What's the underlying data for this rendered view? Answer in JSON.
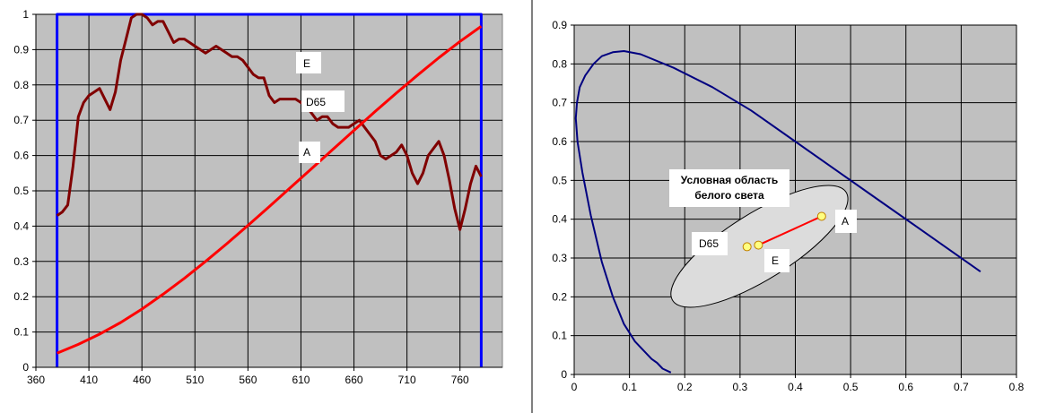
{
  "colors": {
    "plot_bg": "#c0c0c0",
    "grid": "#000000",
    "source_e": "#0000ff",
    "source_d65": "#800000",
    "source_a": "#ff0000",
    "locus": "#000080",
    "white_region_fill": "#dcdcdc",
    "point_fill": "#ffff80",
    "label_bg": "#ffffff"
  },
  "chart_data": [
    {
      "type": "line",
      "title": "",
      "xlabel": "",
      "ylabel": "",
      "xlim": [
        360,
        800
      ],
      "ylim": [
        0,
        1
      ],
      "x_ticks": [
        "360",
        "410",
        "460",
        "510",
        "560",
        "610",
        "660",
        "710",
        "760"
      ],
      "y_ticks": [
        "0",
        "0.1",
        "0.2",
        "0.3",
        "0.4",
        "0.5",
        "0.6",
        "0.7",
        "0.8",
        "0.9",
        "1"
      ],
      "grid": true,
      "series": [
        {
          "name": "E",
          "color": "#0000ff",
          "x": [
            380,
            380,
            780,
            780
          ],
          "y": [
            0.0,
            1.0,
            1.0,
            0.0
          ]
        },
        {
          "name": "D65",
          "color": "#800000",
          "x": [
            380,
            385,
            390,
            395,
            400,
            405,
            410,
            415,
            420,
            425,
            430,
            435,
            440,
            445,
            450,
            455,
            460,
            465,
            470,
            475,
            480,
            485,
            490,
            495,
            500,
            505,
            510,
            515,
            520,
            525,
            530,
            535,
            540,
            545,
            550,
            555,
            560,
            565,
            570,
            575,
            580,
            585,
            590,
            595,
            600,
            605,
            610,
            615,
            620,
            625,
            630,
            635,
            640,
            645,
            650,
            655,
            660,
            665,
            670,
            675,
            680,
            685,
            690,
            695,
            700,
            705,
            710,
            715,
            720,
            725,
            730,
            735,
            740,
            745,
            750,
            755,
            760,
            765,
            770,
            775,
            780
          ],
          "y": [
            0.43,
            0.44,
            0.46,
            0.57,
            0.71,
            0.75,
            0.77,
            0.78,
            0.79,
            0.76,
            0.73,
            0.78,
            0.87,
            0.93,
            0.99,
            1.0,
            1.0,
            0.99,
            0.97,
            0.98,
            0.98,
            0.95,
            0.92,
            0.93,
            0.93,
            0.92,
            0.91,
            0.9,
            0.89,
            0.9,
            0.91,
            0.9,
            0.89,
            0.88,
            0.88,
            0.87,
            0.85,
            0.83,
            0.82,
            0.82,
            0.77,
            0.75,
            0.76,
            0.76,
            0.76,
            0.76,
            0.75,
            0.74,
            0.72,
            0.7,
            0.71,
            0.71,
            0.69,
            0.68,
            0.68,
            0.68,
            0.69,
            0.7,
            0.68,
            0.66,
            0.64,
            0.6,
            0.59,
            0.6,
            0.61,
            0.63,
            0.6,
            0.55,
            0.52,
            0.55,
            0.6,
            0.62,
            0.64,
            0.6,
            0.53,
            0.45,
            0.39,
            0.45,
            0.52,
            0.57,
            0.54
          ]
        },
        {
          "name": "A",
          "color": "#ff0000",
          "x": [
            380,
            400,
            420,
            440,
            460,
            480,
            500,
            520,
            540,
            560,
            580,
            600,
            620,
            640,
            660,
            680,
            700,
            720,
            740,
            760,
            780
          ],
          "y": [
            0.04,
            0.065,
            0.094,
            0.127,
            0.165,
            0.207,
            0.252,
            0.3,
            0.35,
            0.402,
            0.455,
            0.509,
            0.563,
            0.617,
            0.671,
            0.725,
            0.777,
            0.828,
            0.877,
            0.923,
            0.966
          ]
        }
      ],
      "annotations": [
        {
          "text": "E",
          "x": 614,
          "y": 0.945
        },
        {
          "text": "D65",
          "x": 615,
          "y": 0.825
        },
        {
          "text": "A",
          "x": 612,
          "y": 0.67
        }
      ]
    },
    {
      "type": "scatter",
      "title": "",
      "xlabel": "",
      "ylabel": "",
      "xlim": [
        0,
        0.8
      ],
      "ylim": [
        0,
        0.9
      ],
      "x_ticks": [
        "0",
        "0.1",
        "0.2",
        "0.3",
        "0.4",
        "0.5",
        "0.6",
        "0.7",
        "0.8"
      ],
      "y_ticks": [
        "0",
        "0.1",
        "0.2",
        "0.3",
        "0.4",
        "0.5",
        "0.6",
        "0.7",
        "0.8",
        "0.9"
      ],
      "grid": true,
      "locus": {
        "x": [
          0.175,
          0.16,
          0.15,
          0.14,
          0.11,
          0.09,
          0.07,
          0.05,
          0.03,
          0.015,
          0.006,
          0.003,
          0.005,
          0.01,
          0.02,
          0.035,
          0.05,
          0.07,
          0.09,
          0.12,
          0.18,
          0.25,
          0.32,
          0.4,
          0.48,
          0.55,
          0.62,
          0.68,
          0.735
        ],
        "y": [
          0.005,
          0.015,
          0.03,
          0.04,
          0.085,
          0.13,
          0.2,
          0.29,
          0.41,
          0.52,
          0.6,
          0.66,
          0.7,
          0.74,
          0.77,
          0.8,
          0.82,
          0.83,
          0.833,
          0.825,
          0.79,
          0.74,
          0.68,
          0.6,
          0.52,
          0.45,
          0.38,
          0.32,
          0.265
        ]
      },
      "white_region": {
        "label": "Условная область белого света",
        "label_lines": [
          "Условная область",
          "белого света"
        ],
        "center": [
          0.335,
          0.33
        ],
        "semi_axes": [
          0.185,
          0.085
        ],
        "rotation_deg": -32
      },
      "points": [
        {
          "name": "A",
          "x": 0.4476,
          "y": 0.4074
        },
        {
          "name": "D65",
          "x": 0.3127,
          "y": 0.329
        },
        {
          "name": "E",
          "x": 0.3333,
          "y": 0.3333
        }
      ],
      "connector": [
        "E",
        "A"
      ]
    }
  ]
}
